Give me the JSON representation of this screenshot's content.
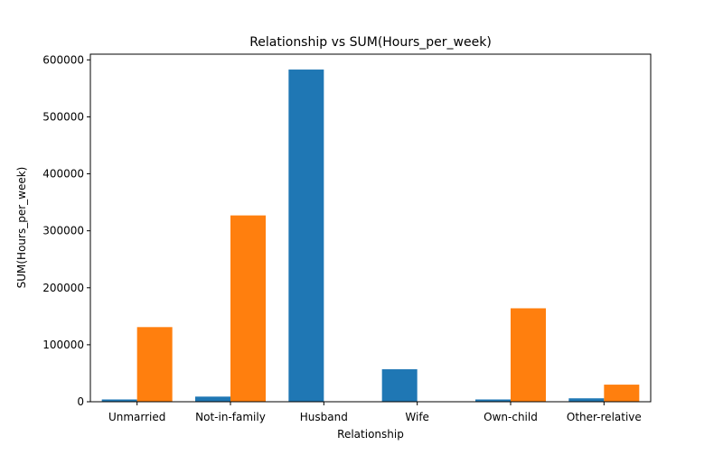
{
  "chart_data": {
    "type": "bar",
    "title": "Relationship vs SUM(Hours_per_week)",
    "xlabel": "Relationship",
    "ylabel": "SUM(Hours_per_week)",
    "categories": [
      "Unmarried",
      "Not-in-family",
      "Husband",
      "Wife",
      "Own-child",
      "Other-relative"
    ],
    "series": [
      {
        "color": "#1f77b4",
        "values": [
          4000,
          9000,
          583000,
          57000,
          4000,
          6000
        ]
      },
      {
        "color": "#ff7f0e",
        "values": [
          131000,
          327000,
          0,
          0,
          164000,
          30000
        ]
      }
    ],
    "ylim": [
      0,
      610000
    ],
    "yticks": [
      0,
      100000,
      200000,
      300000,
      400000,
      500000,
      600000
    ],
    "grid": false,
    "legend": "none"
  }
}
